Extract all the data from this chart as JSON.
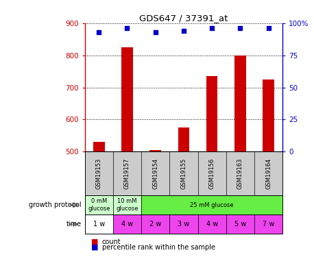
{
  "title": "GDS647 / 37391_at",
  "samples": [
    "GSM19153",
    "GSM19157",
    "GSM19154",
    "GSM19155",
    "GSM19156",
    "GSM19163",
    "GSM19164"
  ],
  "counts": [
    530,
    825,
    505,
    575,
    735,
    800,
    725
  ],
  "percentiles": [
    93,
    96,
    93,
    94,
    96,
    96,
    96
  ],
  "ylim_left": [
    500,
    900
  ],
  "ylim_right": [
    0,
    100
  ],
  "yticks_left": [
    500,
    600,
    700,
    800,
    900
  ],
  "yticks_right": [
    0,
    25,
    50,
    75,
    100
  ],
  "ytick_labels_right": [
    "0",
    "25",
    "50",
    "75",
    "100%"
  ],
  "bar_color": "#cc0000",
  "dot_color": "#0000cc",
  "growth_protocol_labels": [
    "0 mM\nglucose",
    "10 mM\nglucose",
    "25 mM glucose"
  ],
  "growth_protocol_colors": [
    "#ccffcc",
    "#ccffcc",
    "#66ee44"
  ],
  "time_labels": [
    "1 w",
    "4 w",
    "2 w",
    "3 w",
    "4 w",
    "5 w",
    "7 w"
  ],
  "time_colors": [
    "white",
    "#ee44ee",
    "#ee44ee",
    "#ee44ee",
    "#ee44ee",
    "#ee44ee",
    "#ee44ee"
  ],
  "sample_bg_color": "#cccccc",
  "left_axis_color": "#cc0000",
  "right_axis_color": "#0000cc",
  "bar_width": 0.4
}
